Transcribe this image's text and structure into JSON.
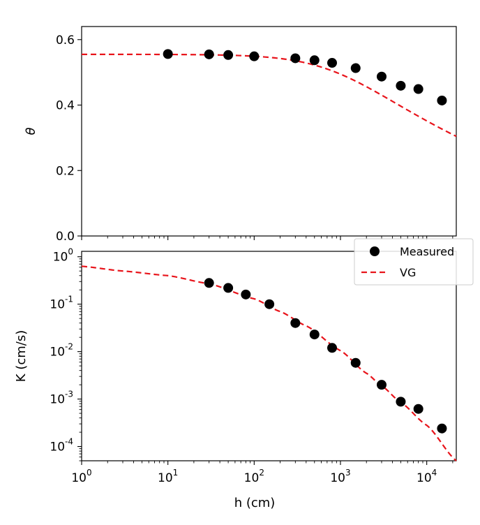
{
  "chart_data": [
    {
      "type": "scatter",
      "ylabel": "θ",
      "xscale": "log",
      "xlim": [
        1,
        22000
      ],
      "ylim": [
        0,
        0.64
      ],
      "yticks": [
        0.0,
        0.2,
        0.4,
        0.6
      ],
      "ytick_labels": [
        "0.0",
        "0.2",
        "0.4",
        "0.6"
      ],
      "series": [
        {
          "name": "Measured",
          "style": "black-dot",
          "x": [
            10,
            30,
            50,
            100,
            300,
            500,
            800,
            1500,
            3000,
            5000,
            8000,
            15000
          ],
          "y": [
            0.556,
            0.555,
            0.553,
            0.549,
            0.543,
            0.537,
            0.529,
            0.513,
            0.487,
            0.459,
            0.449,
            0.414
          ]
        },
        {
          "name": "VG",
          "style": "red-dashed",
          "model": "vg_theta",
          "params": {
            "theta_r": 0.0,
            "theta_s": 0.555,
            "alpha": 0.00105,
            "n": 1.19
          }
        }
      ]
    },
    {
      "type": "scatter",
      "xlabel": "h (cm)",
      "ylabel": "K (cm/s)",
      "xscale": "log",
      "yscale": "log",
      "xlim": [
        1,
        22000
      ],
      "ylim": [
        5e-05,
        1.3
      ],
      "xtick_exponents": [
        0,
        1,
        2,
        3,
        4
      ],
      "ytick_exponents": [
        0,
        -1,
        -2,
        -3,
        -4
      ],
      "series": [
        {
          "name": "Measured",
          "style": "black-dot",
          "x": [
            30,
            50,
            80,
            150,
            300,
            500,
            800,
            1500,
            3000,
            5000,
            8000,
            15000
          ],
          "y": [
            0.28,
            0.22,
            0.16,
            0.1,
            0.04,
            0.023,
            0.012,
            0.0058,
            0.002,
            0.00088,
            0.00062,
            0.00024
          ]
        },
        {
          "name": "VG",
          "style": "red-dashed",
          "x": [
            1,
            3,
            10,
            30,
            100,
            200,
            400,
            1000,
            2000,
            3000,
            5000,
            10000,
            22000
          ],
          "y": [
            0.63,
            0.5,
            0.4,
            0.27,
            0.13,
            0.07,
            0.035,
            0.0105,
            0.0035,
            0.0019,
            0.00085,
            0.00028,
            5e-05
          ]
        }
      ]
    }
  ],
  "legend": {
    "placement": "right-middle",
    "entries": [
      {
        "label": "Measured"
      },
      {
        "label": "VG"
      }
    ]
  },
  "colors": {
    "measured": "#000000",
    "fit": "#e8141b"
  }
}
